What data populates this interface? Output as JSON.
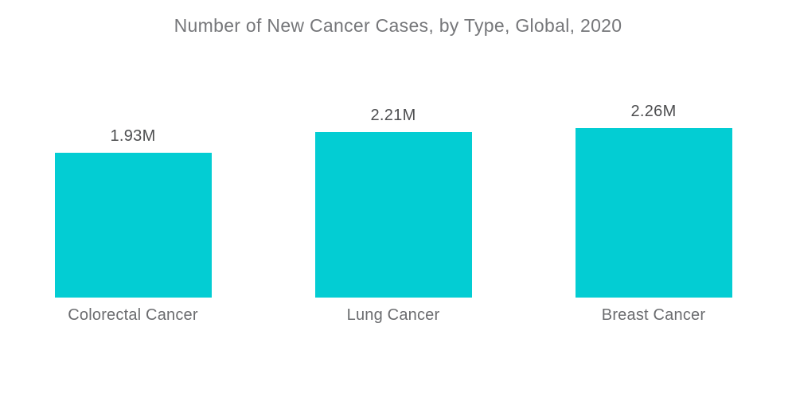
{
  "chart_data": {
    "type": "bar",
    "title": "Number of New Cancer Cases, by Type, Global, 2020",
    "categories": [
      "Colorectal Cancer",
      "Lung Cancer",
      "Breast Cancer"
    ],
    "values": [
      1.93,
      2.21,
      2.26
    ],
    "value_labels": [
      "1.93M",
      "2.21M",
      "2.26M"
    ],
    "unit": "millions of new cases",
    "xlabel": "",
    "ylabel": "",
    "ylim": [
      0,
      2.4
    ],
    "grid": false,
    "legend": "none",
    "bar_color": "#03cdd3",
    "background_color": "#ffffff",
    "title_color": "#76777a",
    "value_label_color": "#4d4e50",
    "category_label_color": "#6b6c6f"
  }
}
